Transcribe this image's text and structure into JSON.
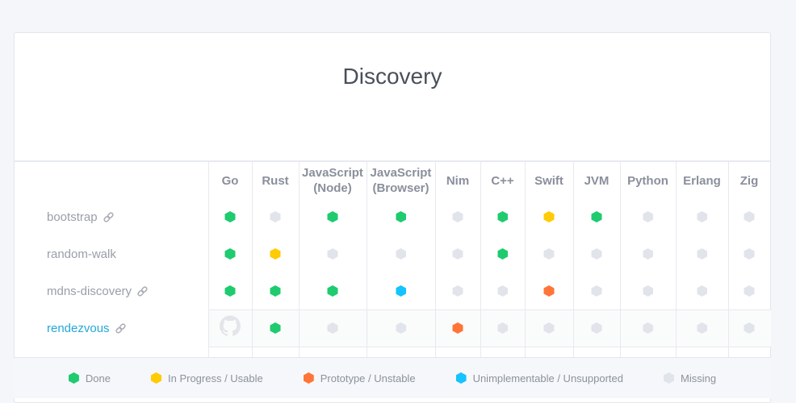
{
  "title": "Discovery",
  "colors": {
    "done": "#1ecb6e",
    "in_progress": "#ffcb05",
    "prototype": "#ff7537",
    "unimplementable": "#14c3ff",
    "missing": "#e1e4ea"
  },
  "columns": [
    "Go",
    "Rust",
    "JavaScript (Node)",
    "JavaScript (Browser)",
    "Nim",
    "C++",
    "Swift",
    "JVM",
    "Python",
    "Erlang",
    "Zig"
  ],
  "rows": [
    {
      "label": "bootstrap",
      "link_icon": "link-icon",
      "status": [
        "done",
        "missing",
        "done",
        "done",
        "missing",
        "done",
        "in_progress",
        "done",
        "missing",
        "missing",
        "missing"
      ]
    },
    {
      "label": "random-walk",
      "status": [
        "done",
        "in_progress",
        "missing",
        "missing",
        "missing",
        "done",
        "missing",
        "missing",
        "missing",
        "missing",
        "missing"
      ]
    },
    {
      "label": "mdns-discovery",
      "link_icon": "link-icon",
      "status": [
        "done",
        "done",
        "done",
        "unimplementable",
        "missing",
        "missing",
        "prototype",
        "missing",
        "missing",
        "missing",
        "missing"
      ]
    },
    {
      "label": "rendezvous",
      "link_icon": "link-icon",
      "status": [
        "github",
        "done",
        "missing",
        "missing",
        "prototype",
        "missing",
        "missing",
        "missing",
        "missing",
        "missing",
        "missing"
      ]
    }
  ],
  "legend": [
    {
      "key": "done",
      "label": "Done"
    },
    {
      "key": "in_progress",
      "label": "In Progress / Usable"
    },
    {
      "key": "prototype",
      "label": "Prototype / Unstable"
    },
    {
      "key": "unimplementable",
      "label": "Unimplementable / Unsupported"
    },
    {
      "key": "missing",
      "label": "Missing"
    }
  ]
}
